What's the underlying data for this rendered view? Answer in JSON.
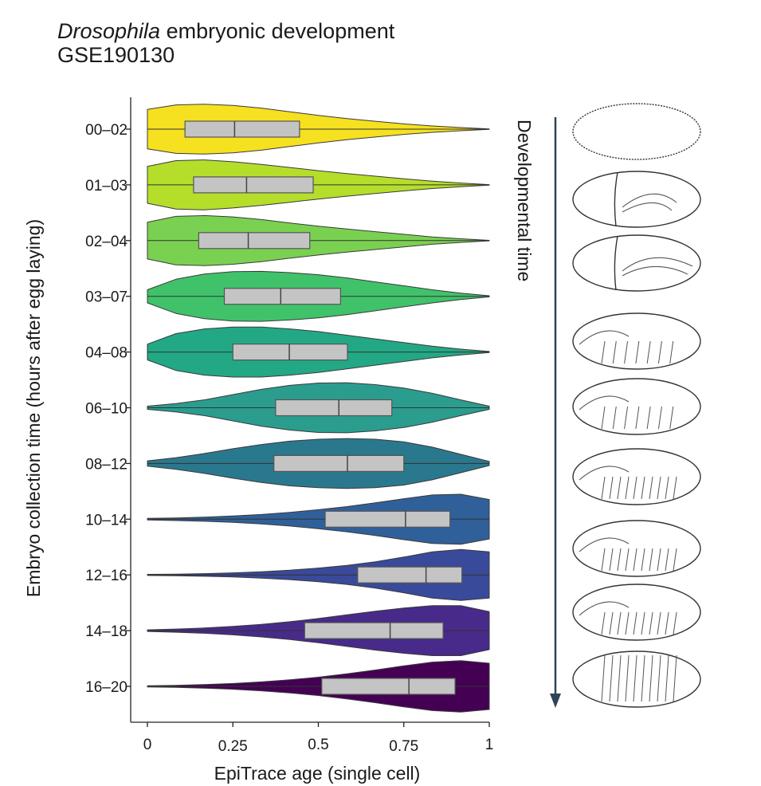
{
  "title": {
    "italic_part": "Drosophila",
    "rest": " embryonic development",
    "subtitle": "GSE190130"
  },
  "dev_time_label": "Developmental time",
  "embryo_icons": [
    "embryo-icon",
    "embryo-icon",
    "embryo-icon",
    "embryo-icon",
    "embryo-icon",
    "embryo-icon",
    "embryo-icon",
    "embryo-icon",
    "embryo-icon"
  ],
  "colors": {
    "axis": "#222222",
    "box_fill": "#c4c4c4",
    "box_stroke": "#555555",
    "arrow": "#2f4358"
  },
  "chart_data": {
    "type": "violin",
    "orientation": "horizontal",
    "xlabel": "EpiTrace age (single cell)",
    "ylabel": "Embryo collection time (hours after egg laying)",
    "xlim": [
      0,
      1
    ],
    "xticks": [
      {
        "value": 0,
        "label": "0"
      },
      {
        "value": 0.25,
        "label": "0.25"
      },
      {
        "value": 0.5,
        "label": "0.5"
      },
      {
        "value": 0.75,
        "label": "0.75"
      },
      {
        "value": 1,
        "label": "1"
      }
    ],
    "series": [
      {
        "label": "00–02",
        "color": "#f5e11f",
        "q1": 0.11,
        "median": 0.255,
        "q3": 0.445,
        "min": 0,
        "max": 1,
        "density": [
          0.75,
          0.92,
          0.95,
          0.9,
          0.8,
          0.66,
          0.52,
          0.4,
          0.3,
          0.2,
          0.12,
          0.06,
          0.01
        ]
      },
      {
        "label": "01–03",
        "color": "#b5de2b",
        "q1": 0.135,
        "median": 0.29,
        "q3": 0.485,
        "min": 0,
        "max": 1,
        "density": [
          0.7,
          0.92,
          0.95,
          0.88,
          0.78,
          0.66,
          0.54,
          0.43,
          0.33,
          0.23,
          0.14,
          0.07,
          0.01
        ]
      },
      {
        "label": "02–04",
        "color": "#7ad151",
        "q1": 0.15,
        "median": 0.295,
        "q3": 0.475,
        "min": 0,
        "max": 1,
        "density": [
          0.7,
          0.92,
          0.95,
          0.9,
          0.8,
          0.67,
          0.55,
          0.44,
          0.34,
          0.24,
          0.14,
          0.07,
          0.01
        ]
      },
      {
        "label": "03–07",
        "color": "#40c26a",
        "q1": 0.225,
        "median": 0.39,
        "q3": 0.565,
        "min": 0,
        "max": 1,
        "density": [
          0.25,
          0.65,
          0.85,
          0.94,
          0.95,
          0.9,
          0.82,
          0.7,
          0.55,
          0.4,
          0.25,
          0.12,
          0.02
        ]
      },
      {
        "label": "04–08",
        "color": "#22a884",
        "q1": 0.25,
        "median": 0.415,
        "q3": 0.585,
        "min": 0,
        "max": 1,
        "density": [
          0.3,
          0.7,
          0.88,
          0.95,
          0.95,
          0.88,
          0.78,
          0.64,
          0.5,
          0.36,
          0.22,
          0.11,
          0.02
        ]
      },
      {
        "label": "06–10",
        "color": "#2a9d8f",
        "q1": 0.375,
        "median": 0.56,
        "q3": 0.715,
        "min": 0,
        "max": 1,
        "density": [
          0.06,
          0.16,
          0.3,
          0.5,
          0.7,
          0.85,
          0.94,
          0.95,
          0.88,
          0.75,
          0.55,
          0.3,
          0.06
        ]
      },
      {
        "label": "08–12",
        "color": "#2a788e",
        "q1": 0.37,
        "median": 0.585,
        "q3": 0.75,
        "min": 0,
        "max": 1,
        "density": [
          0.1,
          0.22,
          0.38,
          0.56,
          0.72,
          0.85,
          0.92,
          0.95,
          0.92,
          0.82,
          0.62,
          0.35,
          0.08
        ]
      },
      {
        "label": "10–14",
        "color": "#30609a",
        "q1": 0.52,
        "median": 0.755,
        "q3": 0.885,
        "min": 0,
        "max": 1,
        "density": [
          0.03,
          0.05,
          0.08,
          0.12,
          0.18,
          0.26,
          0.36,
          0.48,
          0.62,
          0.78,
          0.92,
          0.95,
          0.75
        ]
      },
      {
        "label": "12–16",
        "color": "#3a4a9a",
        "q1": 0.615,
        "median": 0.815,
        "q3": 0.92,
        "min": 0,
        "max": 1,
        "density": [
          0.02,
          0.03,
          0.05,
          0.08,
          0.12,
          0.18,
          0.26,
          0.36,
          0.5,
          0.68,
          0.88,
          0.97,
          0.88
        ]
      },
      {
        "label": "14–18",
        "color": "#472a8a",
        "q1": 0.46,
        "median": 0.71,
        "q3": 0.865,
        "min": 0,
        "max": 1,
        "density": [
          0.03,
          0.06,
          0.1,
          0.16,
          0.24,
          0.34,
          0.46,
          0.6,
          0.74,
          0.86,
          0.95,
          0.95,
          0.72
        ]
      },
      {
        "label": "16–20",
        "color": "#440154",
        "q1": 0.51,
        "median": 0.765,
        "q3": 0.9,
        "min": 0,
        "max": 1,
        "density": [
          0.02,
          0.04,
          0.07,
          0.11,
          0.17,
          0.25,
          0.35,
          0.48,
          0.62,
          0.78,
          0.92,
          0.98,
          0.88
        ]
      }
    ]
  }
}
